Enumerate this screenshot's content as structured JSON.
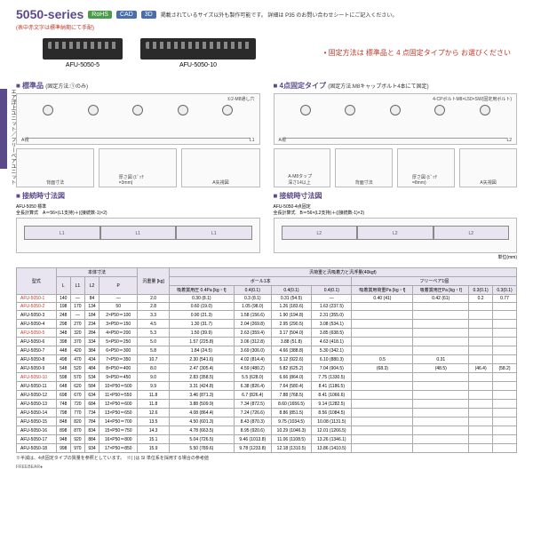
{
  "header": {
    "series": "5050-series",
    "rohs": "RoHS",
    "cad": "CAD",
    "threeD": "3D",
    "note": "掲載されているサイズ以外も製作可能です。\n詳細は P35 のお問い合わせシートにご記入ください。",
    "subnote": "(表中赤文字は標準納期にて手配)"
  },
  "photos": {
    "p1": "AFU-5050-5",
    "p2": "AFU-5050-10"
  },
  "fixingNote": "• 固定方法は\n標準品と 4 点固定タイプから\nお選びください",
  "sideLabel": "エア浮上ユニット／フリーベアユニット",
  "sections": {
    "std": "■ 標準品",
    "stdSub": "(固定方法:①のみ)",
    "fourPt": "■ 4点固定タイプ",
    "fourPtSub": "(固定方法:M8キャップボルト4本にて固定)",
    "conn1": "■ 接続時寸法図",
    "conn2": "■ 接続時寸法図",
    "conn1Sub": "AFU-5050 標準",
    "conn2Sub": "AFU-5050-4点固定",
    "connFormula1": "全長計算式　A＝56×(L1支持)＋((接続数-1)×2)",
    "connFormula2": "全長計算式　B＝56×(L2支持)＋((接続数-1)×2)",
    "unitNote": "単位(mm)"
  },
  "drawings": {
    "topNote1": "①2-M8通し穴",
    "topNote2": "4-CPボルトM8×L50×SW(固定用ボルト)",
    "bottomLabel": "背面寸法",
    "thickLabel": "厚さ図\n(ﾋﾟｯﾁ=3mm)",
    "viewLabel": "A矢視図",
    "tapLabel": "A-M8タップ\n深さ14以上",
    "thickLabel2": "厚さ図\n(ﾋﾟｯﾁ=8mm)"
  },
  "table": {
    "h_model": "型式",
    "h_body": "本体寸法",
    "h_L": "L",
    "h_L1": "L1",
    "h_L2": "L2",
    "h_P": "P",
    "h_weight": "汎重量\n[kg]",
    "h_allow": "汎荷重と汎吸着力と汎浮量(40kgf)",
    "h_ball1": "ボール1本",
    "h_free1": "フリーベア1個",
    "h_allowAir": "吸着賞用圧 0.4Pa [kg・f]",
    "h_allowAir2": "0.4(0.1)",
    "h_allowAir3": "0.4(0.1)",
    "h_allowAir4": "0.4(0.1)",
    "h_allowLoad": "吸着賞用荷重Pa [kg・f]",
    "h_freeAir": "吸着賞用圧Pa [kg・f]",
    "h_freeAir2": "0.3(0.1)",
    "rows": [
      [
        "AFU-5050-1",
        "140",
        "—",
        "84",
        "—",
        "2.0",
        "0.30 (8.1)",
        "0.3 (8.1)",
        "0.31 (54.5)",
        "—",
        "0.40 (41)",
        "0.42 (61)",
        "0.2",
        "0.77"
      ],
      [
        "AFU-5050-2",
        "198",
        "170",
        "134",
        "50",
        "2.8",
        "0.60 (19.0)",
        "1.05 (98.0)",
        "1.26 (183.6)",
        "1.63 (237.5)",
        "",
        "",
        "",
        ""
      ],
      [
        "AFU-5050-3",
        "248",
        "—",
        "184",
        "2×P50＝100",
        "3.3",
        "0.90 (21.3)",
        "1.58 (156.6)",
        "1.90 (194.8)",
        "2.31 (355.0)",
        "",
        "",
        "",
        ""
      ],
      [
        "AFU-5050-4",
        "298",
        "270",
        "234",
        "3×P50＝150",
        "4.5",
        "1.30 (31.7)",
        "2.04 (269.8)",
        "2.95 (290.5)",
        "3.08 (534.1)",
        "",
        "",
        "",
        ""
      ],
      [
        "AFU-5050-5",
        "348",
        "320",
        "284",
        "4×P50＝200",
        "5.3",
        "1.50 (39.9)",
        "2.63 (359.4)",
        "3.17 (504.0)",
        "3.85 (638.5)",
        "",
        "",
        "",
        ""
      ],
      [
        "AFU-5050-6",
        "398",
        "370",
        "334",
        "5×P50＝250",
        "5.0",
        "1.57 (225.8)",
        "3.06 (312.8)",
        "3.88 (51.8)",
        "4.63 (418.1)",
        "",
        "",
        "",
        ""
      ],
      [
        "AFU-5050-7",
        "448",
        "420",
        "384",
        "6×P50＝300",
        "5.8",
        "1.84 (24.5)",
        "3.69 (306.0)",
        "4.66 (388.8)",
        "5.30 (342.1)",
        "",
        "",
        "",
        ""
      ],
      [
        "AFU-5050-8",
        "498",
        "470",
        "434",
        "7×P50＝350",
        "10.7",
        "2.30 (541.6)",
        "4.02 (814.4)",
        "5.12 (922.6)",
        "6.10 (880.3)",
        "0.5",
        "0.31",
        "",
        ""
      ],
      [
        "AFU-5050-9",
        "548",
        "520",
        "484",
        "8×P50＝400",
        "8.0",
        "2.47 (305.4)",
        "4.59 (480.2)",
        "5.82 (625.2)",
        "7.04 (904.5)",
        "(68.3)",
        "(48.5)",
        "(46.4)",
        "(58.2)"
      ],
      [
        "AFU-5050-10",
        "598",
        "570",
        "534",
        "9×P50＝450",
        "9.0",
        "2.83 (358.5)",
        "5.5 (628.0)",
        "6.66 (864.0)",
        "7.75 (1330.5)",
        "",
        "",
        "",
        ""
      ],
      [
        "AFU-5050-11",
        "648",
        "620",
        "584",
        "10×P50＝500",
        "9.9",
        "3.31 (424.8)",
        "6.38 (826.4)",
        "7.64 (580.4)",
        "8.41 (1186.5)",
        "",
        "",
        "",
        ""
      ],
      [
        "AFU-5050-12",
        "698",
        "670",
        "634",
        "11×P50＝550",
        "11.8",
        "3.46 (871.3)",
        "6.7 (826.4)",
        "7.88 (768.5)",
        "8.41 (1066.6)",
        "",
        "",
        "",
        ""
      ],
      [
        "AFU-5050-13",
        "748",
        "720",
        "684",
        "12×P50＝600",
        "11.8",
        "3.88 (509.9)",
        "7.34 (872.5)",
        "8.60 (1656.5)",
        "9.14 (1282.5)",
        "",
        "",
        "",
        ""
      ],
      [
        "AFU-5050-14",
        "798",
        "770",
        "734",
        "13×P50＝650",
        "12.6",
        "4.08 (864.4)",
        "7.24 (726.6)",
        "8.86 (851.5)",
        "8.56 (1084.5)",
        "",
        "",
        "",
        ""
      ],
      [
        "AFU-5050-15",
        "848",
        "820",
        "784",
        "14×P50＝700",
        "13.5",
        "4.50 (601.3)",
        "8.43 (870.3)",
        "9.75 (1034.5)",
        "10.08 (1131.5)",
        "",
        "",
        "",
        ""
      ],
      [
        "AFU-5050-16",
        "898",
        "870",
        "834",
        "15×P50＝750",
        "14.3",
        "4.78 (663.5)",
        "8.95 (920.6)",
        "10.29 (1046.3)",
        "12.01 (1266.5)",
        "",
        "",
        "",
        ""
      ],
      [
        "AFU-5050-17",
        "948",
        "920",
        "884",
        "16×P50＝800",
        "15.1",
        "5.04 (726.5)",
        "9.46 (1013.8)",
        "11.06 (1108.5)",
        "13.26 (1346.1)",
        "",
        "",
        "",
        ""
      ],
      [
        "AFU-5050-18",
        "998",
        "970",
        "934",
        "17×P50＝850",
        "15.9",
        "5.50 (789.6)",
        "9.78 (1233.8)",
        "12.18 (1310.5)",
        "13.86 (1410.5)",
        "",
        "",
        "",
        ""
      ]
    ],
    "note": "※半減は、4点固定タイプの質量を参照としています。　※( )は SI 単位系を採用する場合の参考値"
  },
  "footer": "FREEBEAR●"
}
